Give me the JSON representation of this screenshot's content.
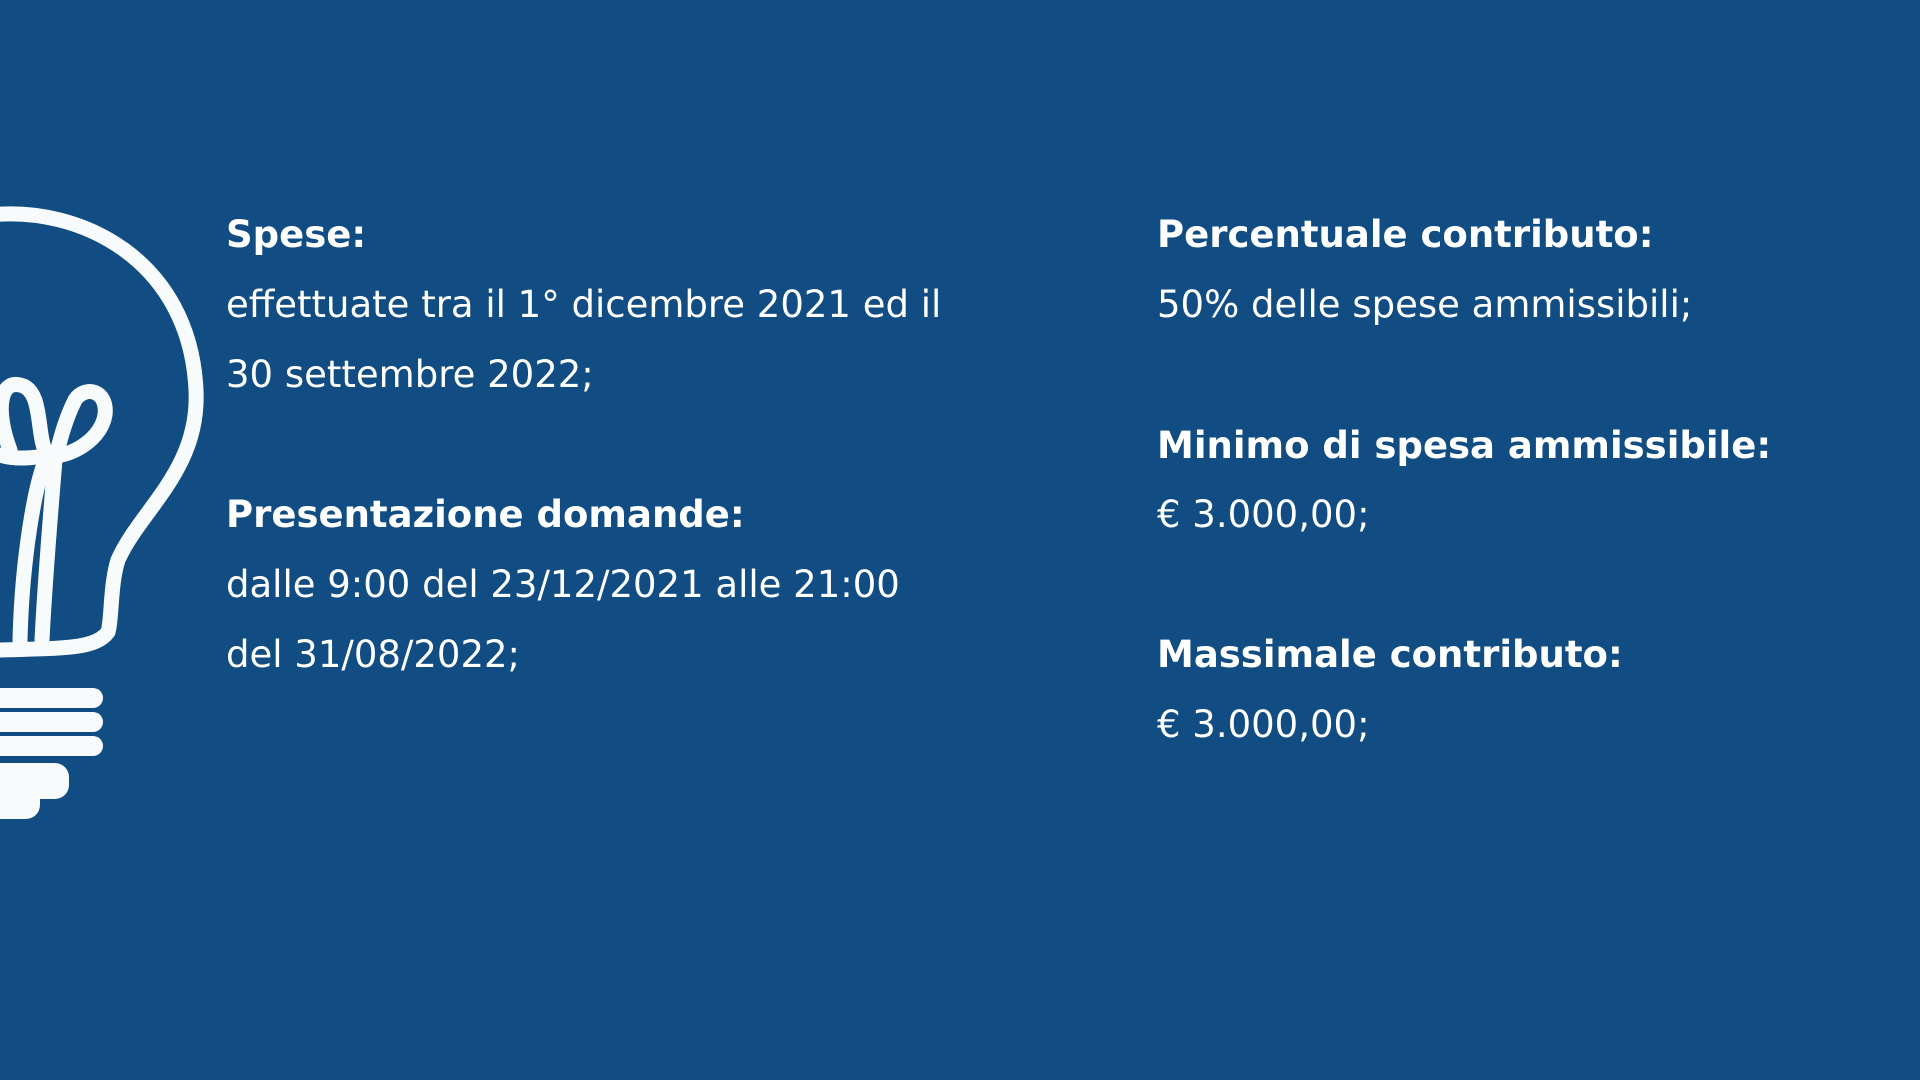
{
  "left": {
    "spese_heading": "Spese:",
    "spese_line1": "effettuate tra il 1° dicembre 2021 ed il",
    "spese_line2": "30 settembre 2022;",
    "domande_heading": "Presentazione domande:",
    "domande_line1": "dalle 9:00 del 23/12/2021 alle 21:00",
    "domande_line2": "del 31/08/2022;"
  },
  "right": {
    "percentuale_heading": "Percentuale contributo:",
    "percentuale_value": "50% delle spese ammissibili;",
    "minimo_heading": "Minimo di spesa ammissibile:",
    "minimo_value": "€ 3.000,00;",
    "massimale_heading": "Massimale contributo:",
    "massimale_value": "€ 3.000,00;"
  },
  "colors": {
    "background": "#114c82",
    "foreground": "#ffffff"
  },
  "icon": "lightbulb-icon"
}
